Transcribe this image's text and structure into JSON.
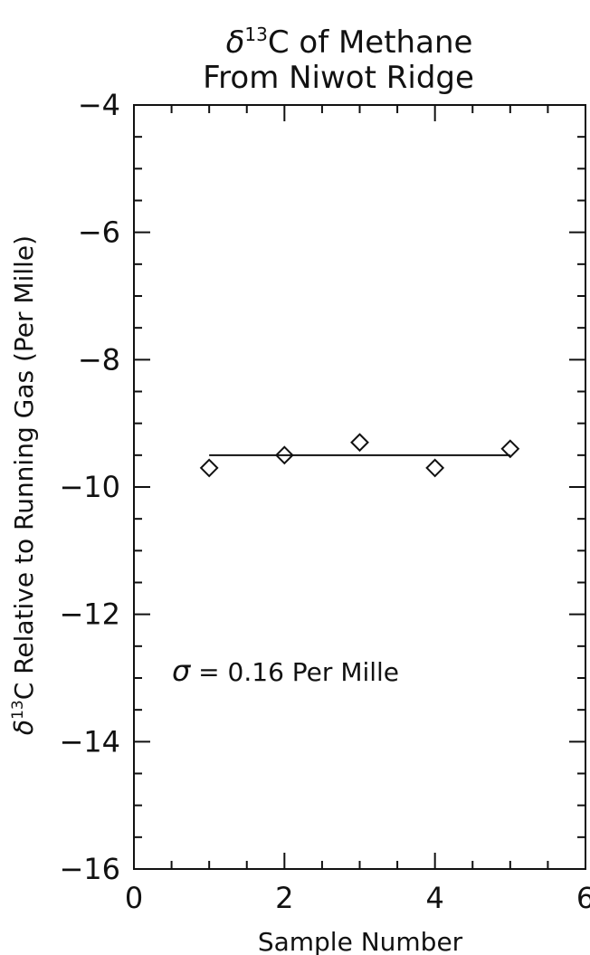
{
  "chart_data": {
    "type": "scatter",
    "title_line1_symbol": "δ",
    "title_line1_superscript": "13",
    "title_line1_rest": "C of Methane",
    "title_line2": "From Niwot Ridge",
    "xlabel": "Sample Number",
    "ylabel_symbol": "δ",
    "ylabel_superscript": "13",
    "ylabel_rest": "C Relative to Running Gas (Per Mille)",
    "xlim": [
      0,
      6
    ],
    "ylim": [
      -16,
      -4
    ],
    "x_ticks": [
      0,
      2,
      4,
      6
    ],
    "x_tick_labels": [
      "0",
      "2",
      "4",
      "6"
    ],
    "y_ticks": [
      -4,
      -6,
      -8,
      -10,
      -12,
      -14,
      -16
    ],
    "y_tick_labels": [
      "−4",
      "−6",
      "−8",
      "−10",
      "−12",
      "−14",
      "−16"
    ],
    "grid": false,
    "marker": "diamond",
    "points": [
      {
        "x": 1,
        "y": -9.7
      },
      {
        "x": 2,
        "y": -9.5
      },
      {
        "x": 3,
        "y": -9.3
      },
      {
        "x": 4,
        "y": -9.7
      },
      {
        "x": 5,
        "y": -9.4
      }
    ],
    "mean_line": {
      "x": [
        1,
        5
      ],
      "y": -9.5
    },
    "annotation": {
      "symbol": "σ",
      "text": " = 0.16 Per Mille"
    }
  }
}
